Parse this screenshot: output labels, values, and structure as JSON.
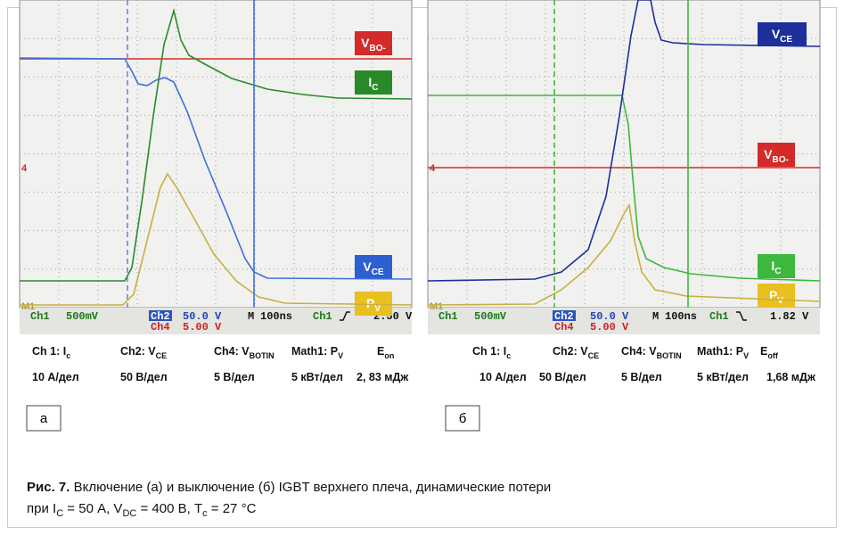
{
  "panels": [
    {
      "tag": "а",
      "scope": {
        "status": [
          "Ch1",
          "500mV",
          "Ch2",
          "50.0 V",
          "Ch4",
          "5.00 V",
          "M",
          "100ns",
          "Ch1",
          "2.50 V"
        ],
        "markers": [
          "4",
          "M1"
        ],
        "labels": [
          {
            "t": "V",
            "sub": "BO-"
          },
          {
            "t": "I",
            "sub": "C"
          },
          {
            "t": "V",
            "sub": "CE"
          },
          {
            "t": "P",
            "sub": "V"
          }
        ]
      },
      "table": {
        "header": [
          {
            "t": "Ch 1: I",
            "sub": "c"
          },
          {
            "t": "Ch2: V",
            "sub": "CE"
          },
          {
            "t": "Ch4: V",
            "sub": "BOTIN"
          },
          {
            "t": "Math1: P",
            "sub": "V"
          },
          {
            "t": "E",
            "sub": "on"
          }
        ],
        "values": [
          "10 А/дел",
          "50 В/дел",
          "5 В/дел",
          "5 кВт/дел",
          "2, 83 мДж"
        ]
      }
    },
    {
      "tag": "б",
      "scope": {
        "status": [
          "Ch1",
          "500mV",
          "Ch2",
          "50.0 V",
          "Ch4",
          "5.00 V",
          "M",
          "100ns",
          "Ch1",
          "1.82 V"
        ],
        "markers": [
          "4",
          "M1"
        ],
        "labels": [
          {
            "t": "V",
            "sub": "CE"
          },
          {
            "t": "V",
            "sub": "BO-"
          },
          {
            "t": "I",
            "sub": "C"
          },
          {
            "t": "P",
            "sub": "V"
          }
        ]
      },
      "table": {
        "header": [
          {
            "t": "Ch 1: I",
            "sub": "c"
          },
          {
            "t": "Ch2: V",
            "sub": "CE"
          },
          {
            "t": "Ch4: V",
            "sub": "BOTIN"
          },
          {
            "t": "Math1: P",
            "sub": "V"
          },
          {
            "t": "E",
            "sub": "off"
          }
        ],
        "values": [
          "10 А/дел",
          "50 В/дел",
          "5 В/дел",
          "5 кВт/дел",
          "1,68 мДж"
        ]
      }
    }
  ],
  "caption": {
    "label": "Рис. 7.",
    "line1": " Включение (а) и выключение (б) IGBT верхнего плеча, динамические потери",
    "line2": [
      {
        "t": "при I"
      },
      {
        "sub": "C"
      },
      {
        "t": " = 50 А, V"
      },
      {
        "sub": "DC"
      },
      {
        "t": " = 400 В, T"
      },
      {
        "sub": "c"
      },
      {
        "t": " = 27 °C"
      }
    ]
  }
}
